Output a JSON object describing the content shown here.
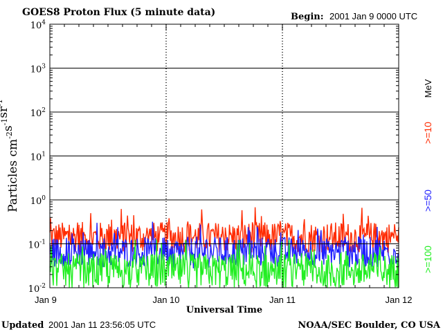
{
  "chart_data": {
    "type": "line",
    "title": "GOES8 Proton Flux (5 minute data)",
    "begin_label": "Begin:",
    "begin_value": "2001 Jan 9 0000 UTC",
    "xlabel": "Universal Time",
    "ylabel": "Particles cm⁻²s⁻¹sr⁻¹",
    "ylabel_parts": [
      {
        "text": "Particles cm",
        "sup": ""
      },
      {
        "text": "",
        "sup": "-2"
      },
      {
        "text": "s",
        "sup": "-1"
      },
      {
        "text": "sr",
        "sup": "-1"
      }
    ],
    "y_scale": "log",
    "ylim": [
      0.01,
      10000
    ],
    "y_ticks": [
      {
        "base": "10",
        "exp": "4"
      },
      {
        "base": "10",
        "exp": "3"
      },
      {
        "base": "10",
        "exp": "2"
      },
      {
        "base": "10",
        "exp": "1"
      },
      {
        "base": "10",
        "exp": "0"
      },
      {
        "base": "10",
        "exp": "-1"
      },
      {
        "base": "10",
        "exp": "-2"
      }
    ],
    "x_ticks": [
      "Jan 9",
      "Jan 10",
      "Jan 11",
      "Jan 12"
    ],
    "grid": true,
    "units_label": "MeV",
    "series": [
      {
        "name": ">=10",
        "color": "#ff2a00",
        "base": 0.13,
        "amplitude": 0.35,
        "min": 0.06
      },
      {
        "name": ">=50",
        "color": "#2020ff",
        "base": 0.06,
        "amplitude": 0.35,
        "min": 0.03
      },
      {
        "name": ">=100",
        "color": "#22ee22",
        "base": 0.022,
        "amplitude": 0.4,
        "min": 0.01
      }
    ]
  },
  "footer": {
    "updated_label": "Updated",
    "updated_value": "2001 Jan 11 23:56:05 UTC",
    "source": "NOAA/SEC Boulder, CO USA"
  }
}
